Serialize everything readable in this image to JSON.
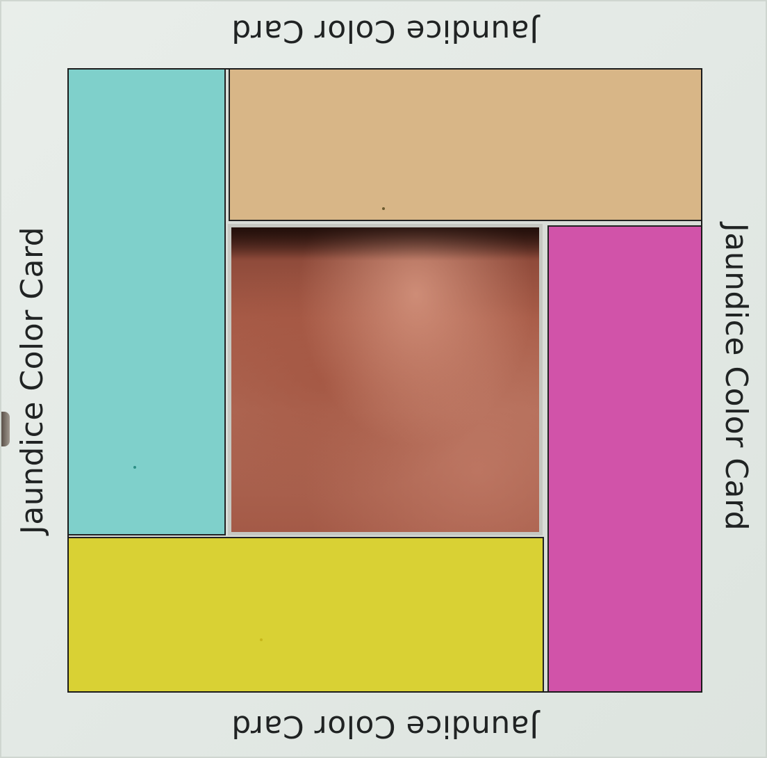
{
  "card": {
    "label_top": "Jaundice Color Card",
    "label_left": "Jaundice Color Card",
    "label_right": "Jaundice Color Card",
    "label_bottom": "Jaundice Color Card"
  },
  "swatches": [
    {
      "name": "cyan",
      "color": "#7fd0cb"
    },
    {
      "name": "tan",
      "color": "#d8b687"
    },
    {
      "name": "magenta",
      "color": "#d153a9"
    },
    {
      "name": "yellow",
      "color": "#d9d134"
    }
  ],
  "window": {
    "content": "skin-sample",
    "color": "#a85c48"
  }
}
